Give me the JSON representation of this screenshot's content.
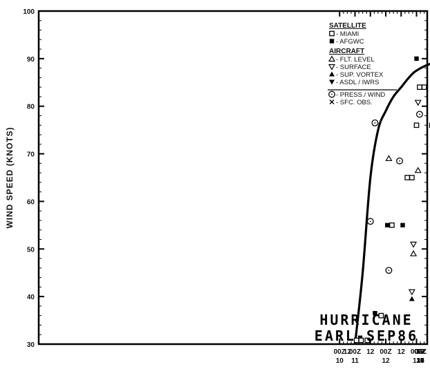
{
  "chart_data": {
    "type": "scatter",
    "title": "HURRICANE EARL-SEP86",
    "title_lines": [
      "HURRICANE",
      "EARL-SEP86"
    ],
    "ylabel": "WIND SPEED (KNOTS)",
    "ylim": [
      30,
      100
    ],
    "xlim": [
      10.5,
      21.5
    ],
    "y_ticks": [
      "30",
      "40",
      "50",
      "60",
      "70",
      "80",
      "90",
      "100"
    ],
    "x_ticks": [
      {
        "x": 10.5,
        "line1": "00Z",
        "line2": "10"
      },
      {
        "x": 10.75,
        "line1": "12",
        "line2": ""
      },
      {
        "x": 11.0,
        "line1": "00Z",
        "line2": "11"
      },
      {
        "x": 11.5,
        "line1": "12",
        "line2": ""
      },
      {
        "x": 12.0,
        "line1": "00Z",
        "line2": "12"
      },
      {
        "x": 12.5,
        "line1": "12",
        "line2": ""
      },
      {
        "x": 13.0,
        "line1": "00Z",
        "line2": "13"
      },
      {
        "x": 13.5,
        "line1": "12",
        "line2": ""
      },
      {
        "x": 14.0,
        "line1": "00Z",
        "line2": "14"
      },
      {
        "x": 14.5,
        "line1": "12",
        "line2": ""
      },
      {
        "x": 15.0,
        "line1": "00Z",
        "line2": "15"
      },
      {
        "x": 15.5,
        "line1": "12",
        "line2": ""
      },
      {
        "x": 16.0,
        "line1": "00Z",
        "line2": "16"
      },
      {
        "x": 16.5,
        "line1": "12",
        "line2": ""
      },
      {
        "x": 17.0,
        "line1": "00Z",
        "line2": "17"
      },
      {
        "x": 17.5,
        "line1": "12",
        "line2": ""
      },
      {
        "x": 18.0,
        "line1": "00Z",
        "line2": "18"
      },
      {
        "x": 18.5,
        "line1": "12",
        "line2": ""
      },
      {
        "x": 19.0,
        "line1": "00Z",
        "line2": "19"
      },
      {
        "x": 19.5,
        "line1": "12",
        "line2": ""
      },
      {
        "x": 20.0,
        "line1": "00Z",
        "line2": "20"
      },
      {
        "x": 20.5,
        "line1": "12",
        "line2": ""
      },
      {
        "x": 21.0,
        "line1": "00Z",
        "line2": ""
      }
    ],
    "legend": {
      "placement": "top-right",
      "groups": [
        {
          "heading": "SATELLITE",
          "entries": [
            {
              "symbol": "open-square",
              "label": "- MIAMI"
            },
            {
              "symbol": "filled-square",
              "label": "- AFGWC"
            }
          ]
        },
        {
          "heading": "AIRCRAFT",
          "entries": [
            {
              "symbol": "open-triangle-up",
              "label": "- FLT. LEVEL"
            },
            {
              "symbol": "open-triangle-down",
              "label": "- SURFACE"
            },
            {
              "symbol": "filled-triangle-up",
              "label": "- SUP. VORTEX"
            },
            {
              "symbol": "filled-triangle-down",
              "label": "- ASDL / IWRS"
            }
          ]
        },
        {
          "heading": "",
          "entries": [
            {
              "symbol": "circle-dot",
              "label": "- PRESS./ WIND"
            },
            {
              "symbol": "x",
              "label": "- SFC. OBS."
            }
          ]
        }
      ]
    },
    "best_track": {
      "x": [
        11.0,
        11.25,
        11.5,
        11.75,
        12.0,
        12.25,
        12.5,
        12.75,
        13.0,
        13.5,
        14.0,
        14.5,
        15.0,
        15.25,
        15.5,
        16.0,
        16.5,
        17.0,
        17.5,
        18.0,
        18.5,
        19.0,
        19.5,
        20.0,
        20.45
      ],
      "y": [
        30,
        45,
        65,
        75,
        79,
        82,
        84,
        86,
        87.5,
        89,
        89.5,
        89.5,
        89.5,
        88,
        85,
        81,
        77.5,
        74.5,
        71.5,
        68.5,
        66,
        63,
        60,
        57.5,
        55.5
      ]
    },
    "series": [
      {
        "name": "MIAMI",
        "symbol": "open-square",
        "points": [
          [
            11.05,
            30.8
          ],
          [
            11.2,
            30.8
          ],
          [
            11.4,
            30.8
          ],
          [
            11.85,
            36
          ],
          [
            12.2,
            55
          ],
          [
            12.7,
            65
          ],
          [
            12.85,
            65
          ],
          [
            13.0,
            76
          ],
          [
            13.1,
            84
          ],
          [
            13.25,
            84
          ],
          [
            13.5,
            76
          ],
          [
            13.7,
            76
          ],
          [
            14.05,
            84
          ],
          [
            14.25,
            84
          ],
          [
            15.0,
            76
          ],
          [
            15.2,
            76
          ],
          [
            15.4,
            76
          ],
          [
            15.6,
            76
          ],
          [
            15.8,
            76
          ],
          [
            16.0,
            76
          ],
          [
            16.2,
            76
          ],
          [
            16.4,
            76
          ],
          [
            16.6,
            76
          ],
          [
            16.8,
            76
          ],
          [
            17.0,
            76
          ],
          [
            17.3,
            64.5
          ],
          [
            17.7,
            64.5
          ],
          [
            17.95,
            64.5
          ],
          [
            18.15,
            64.5
          ],
          [
            18.5,
            64.5
          ],
          [
            18.75,
            64.5
          ],
          [
            19.0,
            64.5
          ],
          [
            19.1,
            46
          ],
          [
            19.55,
            50
          ],
          [
            19.8,
            50
          ],
          [
            20.3,
            60
          ],
          [
            20.4,
            60
          ]
        ]
      },
      {
        "name": "AFGWC",
        "symbol": "filled-square",
        "points": [
          [
            11.65,
            36.5
          ],
          [
            12.05,
            55
          ],
          [
            12.55,
            55
          ],
          [
            13.55,
            65.5
          ],
          [
            13.0,
            90
          ],
          [
            14.0,
            89.5
          ],
          [
            14.6,
            90.5
          ],
          [
            15.1,
            90.5
          ],
          [
            15.7,
            90.3
          ],
          [
            16.4,
            77.5
          ],
          [
            17.85,
            64.8
          ],
          [
            19.25,
            64.5
          ],
          [
            19.4,
            64.5
          ]
        ]
      },
      {
        "name": "FLT. LEVEL",
        "symbol": "open-triangle-up",
        "points": [
          [
            12.1,
            69
          ],
          [
            13.05,
            66.5
          ],
          [
            12.9,
            49
          ]
        ]
      },
      {
        "name": "SURFACE",
        "symbol": "open-triangle-down",
        "points": [
          [
            13.05,
            80.8
          ],
          [
            12.9,
            51
          ],
          [
            12.85,
            41
          ]
        ]
      },
      {
        "name": "SUP. VORTEX",
        "symbol": "filled-triangle-up",
        "points": [
          [
            12.85,
            39.5
          ]
        ]
      },
      {
        "name": "ASDL / IWRS",
        "symbol": "filled-triangle-down",
        "points": [
          [
            14.9,
            78.7
          ],
          [
            15.0,
            63.5
          ]
        ]
      },
      {
        "name": "PRESS./ WIND",
        "symbol": "circle-dot",
        "points": [
          [
            11.65,
            76.5
          ],
          [
            11.5,
            55.8
          ],
          [
            12.1,
            45.5
          ],
          [
            12.45,
            68.5
          ],
          [
            13.1,
            78.3
          ],
          [
            16.75,
            78.2
          ],
          [
            18.95,
            68.8
          ],
          [
            20.0,
            59
          ]
        ]
      },
      {
        "name": "SFC. OBS.",
        "symbol": "x",
        "points": [
          [
            15.2,
            55
          ],
          [
            15.85,
            55
          ],
          [
            19.05,
            64.5
          ],
          [
            19.85,
            58
          ],
          [
            19.85,
            55
          ],
          [
            20.05,
            55
          ]
        ]
      }
    ]
  }
}
